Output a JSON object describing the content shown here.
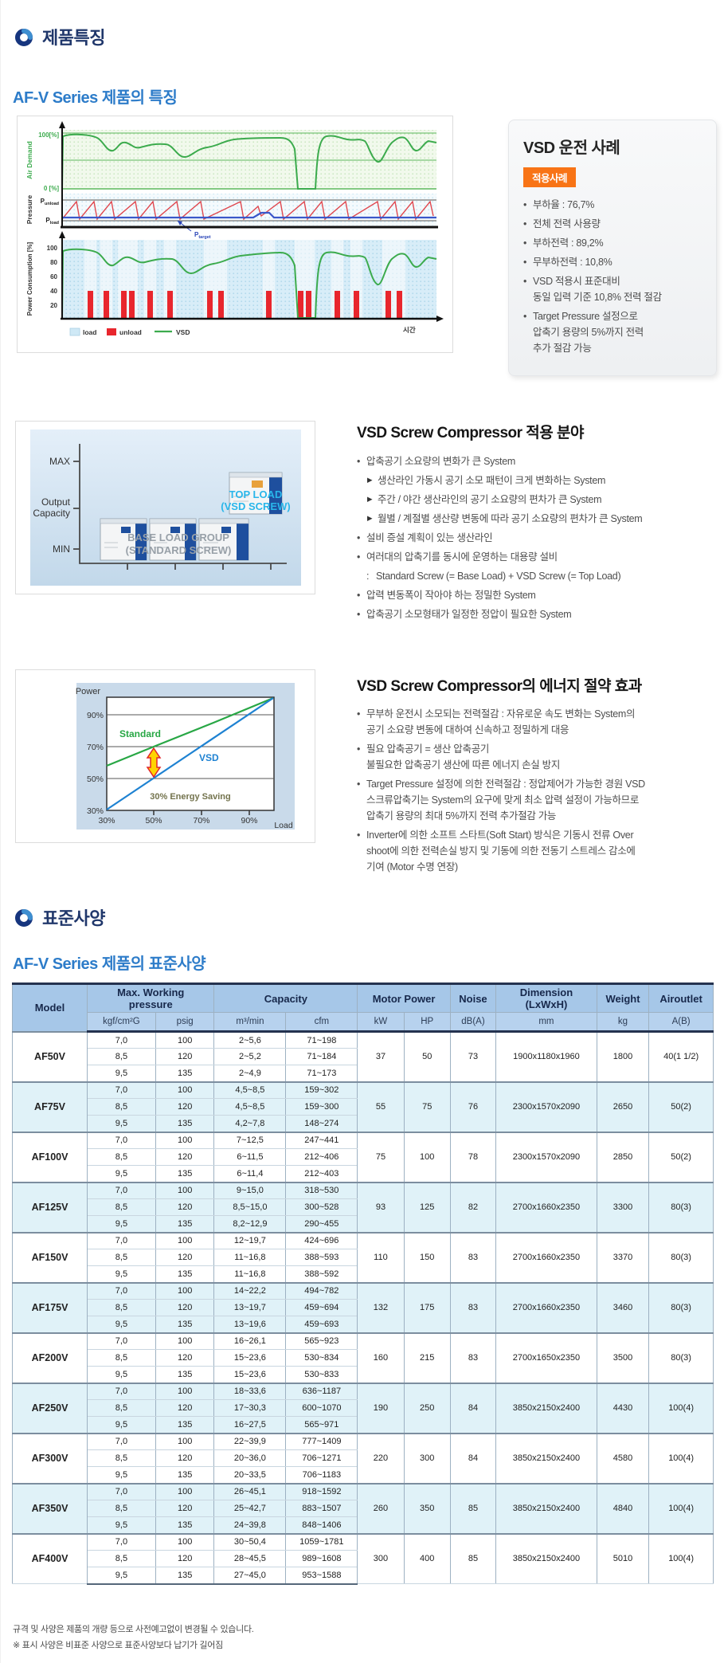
{
  "headings": {
    "section1": "제품특징",
    "section1_sub": "AF-V Series 제품의 특징",
    "section2": "표준사양",
    "section2_sub": "AF-V Series 제품의 표준사양"
  },
  "vsd_case_panel": {
    "title": "VSD 운전 사례",
    "badge": "적용사례",
    "badge_color": "#f87416",
    "bullets": [
      {
        "m": "•",
        "t": "부하율 : 76,7%"
      },
      {
        "m": "•",
        "t": "전체 전력 사용량"
      },
      {
        "m": "•",
        "t": "부하전력 : 89,2%"
      },
      {
        "m": "•",
        "t": "무부하전력 : 10,8%"
      },
      {
        "m": "•",
        "t": "VSD 적용시 표준대비\n동일 입력 기준 10,8% 전력 절감"
      },
      {
        "m": "•",
        "t": "Target Pressure 설정으로\n압축기 용량의 5%까지 전력\n추가 절감 가능"
      }
    ]
  },
  "chart1": {
    "air_top": "100[%]",
    "air_bottom": "0 [%]",
    "air_axis": "Air Demand",
    "pressure_axis": "Pressure",
    "p": "P",
    "p_unload": "unload",
    "p_load": "load",
    "p_target": "target",
    "power_axis": "Power Consumption [%]",
    "power_ticks": [
      "100",
      "80",
      "60",
      "40",
      "20"
    ],
    "legend_load": "load",
    "legend_unload": "unload",
    "legend_vsd": "VSD",
    "time_label": "시간",
    "colors": {
      "demand_line": "#3cab4d",
      "unload_bar": "#e8262d",
      "pressure_line": "#e0484f",
      "vsd_line": "#3a57c9"
    }
  },
  "application_section": {
    "title": "VSD Screw Compressor 적용 분야",
    "items": [
      {
        "m": "•",
        "t": "압축공기 소요량의 변화가 큰 System"
      },
      {
        "m": "▶",
        "t": "생산라인 가동시 공기 소모 패턴이 크게 변화하는 System",
        "cls": "sub"
      },
      {
        "m": "▶",
        "t": "주간 / 야간 생산라인의 공기 소요량의 편차가 큰 System",
        "cls": "sub"
      },
      {
        "m": "▶",
        "t": "월별 / 계절별 생산량 변동에 따라 공기 소요량의 편차가 큰 System",
        "cls": "sub"
      },
      {
        "m": "•",
        "t": "설비 증설 계획이 있는 생산라인"
      },
      {
        "m": "•",
        "t": "여러대의 압축기를 동시에 운영하는 대용량 설비"
      },
      {
        "m": ":",
        "t": "Standard Screw (= Base Load) + VSD Screw (= Top Load)",
        "cls": "cont"
      },
      {
        "m": "•",
        "t": "압력 변동폭이 작아야 하는 정밀한 System"
      },
      {
        "m": "•",
        "t": "압축공기 소모형태가 일정한 정압이 필요한 System"
      }
    ]
  },
  "capacity_diagram": {
    "y_max": "MAX",
    "y_mid1": "Output",
    "y_mid2": "Capacity",
    "y_min": "MIN",
    "top_load1": "TOP LOAD",
    "top_load2": "(VSD SCREW)",
    "base_load1": "BASE LOAD GROUP",
    "base_load2": "(STANDARD SCREW)",
    "top_load_color": "#29b6ea",
    "base_load_color": "#98a0a8"
  },
  "energy_section": {
    "title": "VSD Screw Compressor의 에너지 절약 효과",
    "items": [
      {
        "m": "•",
        "t": "무부하 운전시 소모되는 전력절감 : 자유로운 속도 변화는 System의\n공기 소요량 변동에 대하여 신속하고 정밀하게 대응"
      },
      {
        "m": "•",
        "t": "필요 압축공기 = 생산 압축공기\n불필요한 압축공기 생산에 따른 에너지 손실 방지"
      },
      {
        "m": "•",
        "t": "Target Pressure 설정에 의한 전력절감 : 정압제어가 가능한 경원 VSD\n스크류압축기는 System의 요구에 맞게 최소 압력 설정이 가능하므로\n압축기 용량의 최대 5%까지 전력 추가절감 가능"
      },
      {
        "m": "•",
        "t": "Inverter에 의한 소프트 스타트(Soft Start) 방식은 기동시 전류 Over\nshoot에 의한 전력손실 방지 및 기동에 의한 전동기 스트레스 감소에\n기여 (Motor 수명 연장)"
      }
    ]
  },
  "energy_chart": {
    "power_label": "Power",
    "y_ticks": [
      "90%",
      "70%",
      "50%",
      "30%"
    ],
    "x_ticks": [
      "30%",
      "50%",
      "70%",
      "90%"
    ],
    "load_label": "Load",
    "standard_label": "Standard",
    "vsd_label": "VSD",
    "saving_label": "30% Energy Saving",
    "standard_color": "#28a745",
    "vsd_color": "#1e82d2"
  },
  "spec_table": {
    "h_model": "Model",
    "h_pressure": "Max. Working\npressure",
    "h_capacity": "Capacity",
    "h_motor": "Motor Power",
    "h_noise": "Noise",
    "h_dimension": "Dimension\n(LxWxH)",
    "h_weight": "Weight",
    "h_airoutlet": "Airoutlet",
    "u_kgf": "kgf/cm²G",
    "u_psig": "psig",
    "u_m3": "m³/min",
    "u_cfm": "cfm",
    "u_kw": "kW",
    "u_hp": "HP",
    "u_dba": "dB(A)",
    "u_mm": "mm",
    "u_kg": "kg",
    "u_ab": "A(B)",
    "rows": [
      {
        "model": "AF50V",
        "press": [
          [
            "7,0",
            "100",
            "2~5,6",
            "71~198"
          ],
          [
            "8,5",
            "120",
            "2~5,2",
            "71~184"
          ],
          [
            "9,5",
            "135",
            "2~4,9",
            "71~173"
          ]
        ],
        "kw": "37",
        "hp": "50",
        "noise": "73",
        "dim": "1900x1180x1960",
        "weight": "1800",
        "outlet": "40(1 1/2)"
      },
      {
        "model": "AF75V",
        "press": [
          [
            "7,0",
            "100",
            "4,5~8,5",
            "159~302"
          ],
          [
            "8,5",
            "120",
            "4,5~8,5",
            "159~300"
          ],
          [
            "9,5",
            "135",
            "4,2~7,8",
            "148~274"
          ]
        ],
        "kw": "55",
        "hp": "75",
        "noise": "76",
        "dim": "2300x1570x2090",
        "weight": "2650",
        "outlet": "50(2)"
      },
      {
        "model": "AF100V",
        "press": [
          [
            "7,0",
            "100",
            "7~12,5",
            "247~441"
          ],
          [
            "8,5",
            "120",
            "6~11,5",
            "212~406"
          ],
          [
            "9,5",
            "135",
            "6~11,4",
            "212~403"
          ]
        ],
        "kw": "75",
        "hp": "100",
        "noise": "78",
        "dim": "2300x1570x2090",
        "weight": "2850",
        "outlet": "50(2)"
      },
      {
        "model": "AF125V",
        "press": [
          [
            "7,0",
            "100",
            "9~15,0",
            "318~530"
          ],
          [
            "8,5",
            "120",
            "8,5~15,0",
            "300~528"
          ],
          [
            "9,5",
            "135",
            "8,2~12,9",
            "290~455"
          ]
        ],
        "kw": "93",
        "hp": "125",
        "noise": "82",
        "dim": "2700x1660x2350",
        "weight": "3300",
        "outlet": "80(3)"
      },
      {
        "model": "AF150V",
        "press": [
          [
            "7,0",
            "100",
            "12~19,7",
            "424~696"
          ],
          [
            "8,5",
            "120",
            "11~16,8",
            "388~593"
          ],
          [
            "9,5",
            "135",
            "11~16,8",
            "388~592"
          ]
        ],
        "kw": "110",
        "hp": "150",
        "noise": "83",
        "dim": "2700x1660x2350",
        "weight": "3370",
        "outlet": "80(3)"
      },
      {
        "model": "AF175V",
        "press": [
          [
            "7,0",
            "100",
            "14~22,2",
            "494~782"
          ],
          [
            "8,5",
            "120",
            "13~19,7",
            "459~694"
          ],
          [
            "9,5",
            "135",
            "13~19,6",
            "459~693"
          ]
        ],
        "kw": "132",
        "hp": "175",
        "noise": "83",
        "dim": "2700x1660x2350",
        "weight": "3460",
        "outlet": "80(3)"
      },
      {
        "model": "AF200V",
        "press": [
          [
            "7,0",
            "100",
            "16~26,1",
            "565~923"
          ],
          [
            "8,5",
            "120",
            "15~23,6",
            "530~834"
          ],
          [
            "9,5",
            "135",
            "15~23,6",
            "530~833"
          ]
        ],
        "kw": "160",
        "hp": "215",
        "noise": "83",
        "dim": "2700x1650x2350",
        "weight": "3500",
        "outlet": "80(3)"
      },
      {
        "model": "AF250V",
        "press": [
          [
            "7,0",
            "100",
            "18~33,6",
            "636~1187"
          ],
          [
            "8,5",
            "120",
            "17~30,3",
            "600~1070"
          ],
          [
            "9,5",
            "135",
            "16~27,5",
            "565~971"
          ]
        ],
        "kw": "190",
        "hp": "250",
        "noise": "84",
        "dim": "3850x2150x2400",
        "weight": "4430",
        "outlet": "100(4)"
      },
      {
        "model": "AF300V",
        "press": [
          [
            "7,0",
            "100",
            "22~39,9",
            "777~1409"
          ],
          [
            "8,5",
            "120",
            "20~36,0",
            "706~1271"
          ],
          [
            "9,5",
            "135",
            "20~33,5",
            "706~1183"
          ]
        ],
        "kw": "220",
        "hp": "300",
        "noise": "84",
        "dim": "3850x2150x2400",
        "weight": "4580",
        "outlet": "100(4)"
      },
      {
        "model": "AF350V",
        "press": [
          [
            "7,0",
            "100",
            "26~45,1",
            "918~1592"
          ],
          [
            "8,5",
            "120",
            "25~42,7",
            "883~1507"
          ],
          [
            "9,5",
            "135",
            "24~39,8",
            "848~1406"
          ]
        ],
        "kw": "260",
        "hp": "350",
        "noise": "85",
        "dim": "3850x2150x2400",
        "weight": "4840",
        "outlet": "100(4)"
      },
      {
        "model": "AF400V",
        "press": [
          [
            "7,0",
            "100",
            "30~50,4",
            "1059~1781"
          ],
          [
            "8,5",
            "120",
            "28~45,5",
            "989~1608"
          ],
          [
            "9,5",
            "135",
            "27~45,0",
            "953~1588"
          ]
        ],
        "kw": "300",
        "hp": "400",
        "noise": "85",
        "dim": "3850x2150x2400",
        "weight": "5010",
        "outlet": "100(4)"
      }
    ]
  },
  "footnotes": [
    "규격 및 사양은 제품의 개량 등으로 사전예고없이 변경될 수 있습니다.",
    "※ 표시 사양은 비표준 사양으로 표준사양보다 납기가 길어짐"
  ]
}
